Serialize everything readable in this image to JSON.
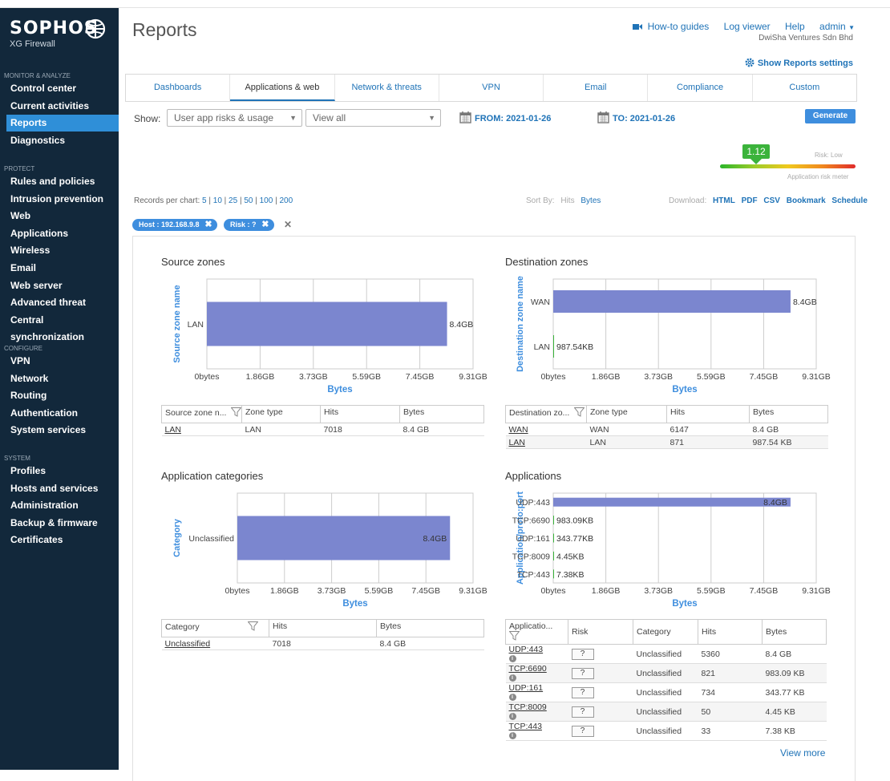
{
  "sidebar": {
    "brand": "SOPHOS",
    "product": "XG Firewall",
    "sections": [
      {
        "title": "MONITOR & ANALYZE",
        "items": [
          "Control center",
          "Current activities",
          "Reports",
          "Diagnostics"
        ]
      },
      {
        "title": "PROTECT",
        "items": [
          "Rules and policies",
          "Intrusion prevention",
          "Web",
          "Applications",
          "Wireless",
          "Email",
          "Web server",
          "Advanced threat",
          "Central synchronization"
        ]
      },
      {
        "title": "CONFIGURE",
        "items": [
          "VPN",
          "Network",
          "Routing",
          "Authentication",
          "System services"
        ]
      },
      {
        "title": "SYSTEM",
        "items": [
          "Profiles",
          "Hosts and services",
          "Administration",
          "Backup & firmware",
          "Certificates"
        ]
      }
    ],
    "active_item": "Reports"
  },
  "header": {
    "title": "Reports",
    "links": [
      "How-to guides",
      "Log viewer",
      "Help",
      "admin"
    ],
    "org": "DwiSha Ventures Sdn Bhd",
    "settings_link": "Show Reports settings"
  },
  "tabs": [
    "Dashboards",
    "Applications & web",
    "Network & threats",
    "VPN",
    "Email",
    "Compliance",
    "Custom"
  ],
  "active_tab": "Applications & web",
  "filters": {
    "show_label": "Show:",
    "report_select": "User app risks & usage",
    "view_select": "View all",
    "from_date": "FROM: 2021-01-26",
    "to_date": "TO: 2021-01-26",
    "generate": "Generate"
  },
  "risk_meter": {
    "value": "1.12",
    "level_label": "Risk: Low",
    "caption": "Application risk meter",
    "level_fraction": 0.25
  },
  "records": {
    "label": "Records per chart:",
    "options": [
      "5",
      "10",
      "25",
      "50",
      "100",
      "200"
    ]
  },
  "sort": {
    "label": "Sort By:",
    "options": [
      "Hits",
      "Bytes"
    ]
  },
  "download": {
    "label": "Download:",
    "options": [
      "HTML",
      "PDF",
      "CSV",
      "Bookmark",
      "Schedule"
    ]
  },
  "chips": [
    "Host : 192.168.9.8",
    "Risk : ?"
  ],
  "chart_data": [
    {
      "type": "bar",
      "title": "Source zones",
      "ylabel": "Source zone name",
      "xlabel": "Bytes",
      "xticks": [
        "0bytes",
        "1.86GB",
        "3.73GB",
        "5.59GB",
        "7.45GB",
        "9.31GB"
      ],
      "xlim_gb": [
        0,
        9.31
      ],
      "categories": [
        "LAN"
      ],
      "values_gb": [
        8.4
      ],
      "labels": [
        "8.4GB"
      ]
    },
    {
      "type": "bar",
      "title": "Destination zones",
      "ylabel": "Destination zone name",
      "xlabel": "Bytes",
      "xticks": [
        "0bytes",
        "1.86GB",
        "3.73GB",
        "5.59GB",
        "7.45GB",
        "9.31GB"
      ],
      "xlim_gb": [
        0,
        9.31
      ],
      "categories": [
        "WAN",
        "LAN"
      ],
      "values_gb": [
        8.4,
        0.00094
      ],
      "labels": [
        "8.4GB",
        "987.54KB"
      ]
    },
    {
      "type": "bar",
      "title": "Application categories",
      "ylabel": "Category",
      "xlabel": "Bytes",
      "xticks": [
        "0bytes",
        "1.86GB",
        "3.73GB",
        "5.59GB",
        "7.45GB",
        "9.31GB"
      ],
      "xlim_gb": [
        0,
        9.31
      ],
      "categories": [
        "Unclassified"
      ],
      "values_gb": [
        8.4
      ],
      "labels": [
        "8.4GB"
      ]
    },
    {
      "type": "bar",
      "title": "Applications",
      "ylabel": "Application/proto:port",
      "xlabel": "Bytes",
      "xticks": [
        "0bytes",
        "1.86GB",
        "3.73GB",
        "5.59GB",
        "7.45GB",
        "9.31GB"
      ],
      "xlim_gb": [
        0,
        9.31
      ],
      "categories": [
        "UDP:443",
        "TCP:6690",
        "UDP:161",
        "TCP:8009",
        "TCP:443"
      ],
      "values_gb": [
        8.4,
        0.00094,
        0.00033,
        4.2e-06,
        7e-06
      ],
      "labels": [
        "8.4GB",
        "983.09KB",
        "343.77KB",
        "4.45KB",
        "7.38KB"
      ]
    }
  ],
  "tables": {
    "source_zones": {
      "headers": [
        "Source zone n...",
        "Zone type",
        "Hits",
        "Bytes"
      ],
      "rows": [
        [
          "LAN",
          "LAN",
          "7018",
          "8.4 GB"
        ]
      ]
    },
    "destination_zones": {
      "headers": [
        "Destination zo...",
        "Zone type",
        "Hits",
        "Bytes"
      ],
      "rows": [
        [
          "WAN",
          "WAN",
          "6147",
          "8.4 GB"
        ],
        [
          "LAN",
          "LAN",
          "871",
          "987.54 KB"
        ]
      ]
    },
    "categories": {
      "headers": [
        "Category",
        "Hits",
        "Bytes"
      ],
      "rows": [
        [
          "Unclassified",
          "7018",
          "8.4 GB"
        ]
      ]
    },
    "applications": {
      "headers": [
        "Applicatio...",
        "Risk",
        "Category",
        "Hits",
        "Bytes"
      ],
      "rows": [
        [
          "UDP:443",
          "?",
          "Unclassified",
          "5360",
          "8.4 GB"
        ],
        [
          "TCP:6690",
          "?",
          "Unclassified",
          "821",
          "983.09 KB"
        ],
        [
          "UDP:161",
          "?",
          "Unclassified",
          "734",
          "343.77 KB"
        ],
        [
          "TCP:8009",
          "?",
          "Unclassified",
          "50",
          "4.45 KB"
        ],
        [
          "TCP:443",
          "?",
          "Unclassified",
          "33",
          "7.38 KB"
        ]
      ]
    }
  },
  "view_more": "View more",
  "colors": {
    "sidebar_bg": "#12283b",
    "active_nav": "#2f8fd8",
    "bar": "#7b86cf",
    "link": "#1f73b7",
    "chip": "#3e8ede",
    "risk_low": "#3bb33b"
  }
}
